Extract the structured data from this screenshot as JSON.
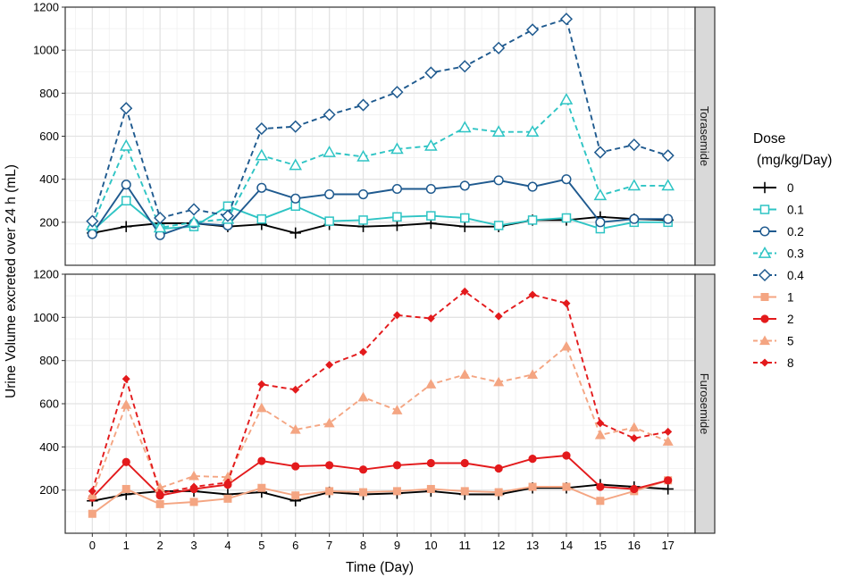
{
  "chart_data": {
    "type": "line",
    "layout": "faceted",
    "xlabel": "Time (Day)",
    "ylabel": "Urine Volume excreted over 24 h (mL)",
    "x": [
      0,
      1,
      2,
      3,
      4,
      5,
      6,
      7,
      8,
      9,
      10,
      11,
      12,
      13,
      14,
      15,
      16,
      17
    ],
    "xlim": [
      -0.8,
      17.8
    ],
    "ylim": [
      0,
      1200
    ],
    "yticks": [
      200,
      400,
      600,
      800,
      1000,
      1200
    ],
    "grid": true,
    "legend": {
      "title_line1": "Dose",
      "title_line2": "(mg/kg/Day)",
      "position": "right",
      "entries": [
        {
          "label": "0",
          "color": "#000000",
          "shape": "plus",
          "dash": false
        },
        {
          "label": "0.1",
          "color": "#2EC4C4",
          "shape": "open-square",
          "dash": false
        },
        {
          "label": "0.2",
          "color": "#1F5A8F",
          "shape": "open-circle",
          "dash": false
        },
        {
          "label": "0.3",
          "color": "#2EC4C4",
          "shape": "open-triangle",
          "dash": true
        },
        {
          "label": "0.4",
          "color": "#1F5A8F",
          "shape": "open-diamond",
          "dash": true
        },
        {
          "label": "1",
          "color": "#F4A582",
          "shape": "filled-square",
          "dash": false
        },
        {
          "label": "2",
          "color": "#E31A1C",
          "shape": "filled-circle",
          "dash": false
        },
        {
          "label": "5",
          "color": "#F4A582",
          "shape": "filled-triangle",
          "dash": true
        },
        {
          "label": "8",
          "color": "#E31A1C",
          "shape": "filled-diamond",
          "dash": true
        }
      ]
    },
    "panels": [
      {
        "strip": "Torasemide",
        "series": [
          {
            "dose": "0",
            "color": "#000000",
            "shape": "plus",
            "dash": false,
            "values": [
              150,
              180,
              195,
              195,
              180,
              190,
              150,
              190,
              180,
              185,
              195,
              180,
              180,
              210,
              210,
              225,
              215,
              210
            ]
          },
          {
            "dose": "0.1",
            "color": "#2EC4C4",
            "shape": "open-square",
            "dash": false,
            "values": [
              160,
              300,
              170,
              180,
              275,
              215,
              275,
              205,
              210,
              225,
              230,
              220,
              185,
              210,
              220,
              170,
              200,
              200
            ]
          },
          {
            "dose": "0.2",
            "color": "#1F5A8F",
            "shape": "open-circle",
            "dash": false,
            "values": [
              145,
              375,
              140,
              195,
              185,
              360,
              310,
              330,
              330,
              355,
              355,
              370,
              395,
              365,
              400,
              200,
              215,
              215
            ]
          },
          {
            "dose": "0.3",
            "color": "#2EC4C4",
            "shape": "open-triangle",
            "dash": true,
            "values": [
              185,
              555,
              175,
              200,
              215,
              510,
              465,
              525,
              505,
              540,
              555,
              640,
              620,
              620,
              770,
              325,
              370,
              370
            ]
          },
          {
            "dose": "0.4",
            "color": "#1F5A8F",
            "shape": "open-diamond",
            "dash": true,
            "values": [
              205,
              730,
              220,
              260,
              230,
              635,
              645,
              700,
              745,
              805,
              895,
              925,
              1010,
              1095,
              1145,
              525,
              560,
              510
            ]
          }
        ]
      },
      {
        "strip": "Furosemide",
        "series": [
          {
            "dose": "0",
            "color": "#000000",
            "shape": "plus",
            "dash": false,
            "values": [
              150,
              180,
              195,
              195,
              180,
              190,
              150,
              190,
              180,
              185,
              195,
              180,
              180,
              210,
              210,
              225,
              215,
              205
            ]
          },
          {
            "dose": "1",
            "color": "#F4A582",
            "shape": "filled-square",
            "dash": false,
            "values": [
              90,
              205,
              135,
              145,
              160,
              210,
              175,
              195,
              190,
              195,
              205,
              195,
              190,
              215,
              215,
              150,
              195,
              245
            ]
          },
          {
            "dose": "2",
            "color": "#E31A1C",
            "shape": "filled-circle",
            "dash": false,
            "values": [
              165,
              330,
              175,
              205,
              225,
              335,
              310,
              315,
              295,
              315,
              325,
              325,
              300,
              345,
              360,
              215,
              205,
              245
            ]
          },
          {
            "dose": "5",
            "color": "#F4A582",
            "shape": "filled-triangle",
            "dash": true,
            "values": [
              175,
              595,
              210,
              265,
              260,
              580,
              480,
              510,
              630,
              570,
              690,
              735,
              700,
              735,
              865,
              455,
              490,
              425
            ]
          },
          {
            "dose": "8",
            "color": "#E31A1C",
            "shape": "filled-diamond",
            "dash": true,
            "values": [
              195,
              715,
              185,
              215,
              235,
              690,
              665,
              780,
              840,
              1010,
              995,
              1120,
              1005,
              1105,
              1065,
              510,
              440,
              470
            ]
          }
        ]
      }
    ]
  }
}
